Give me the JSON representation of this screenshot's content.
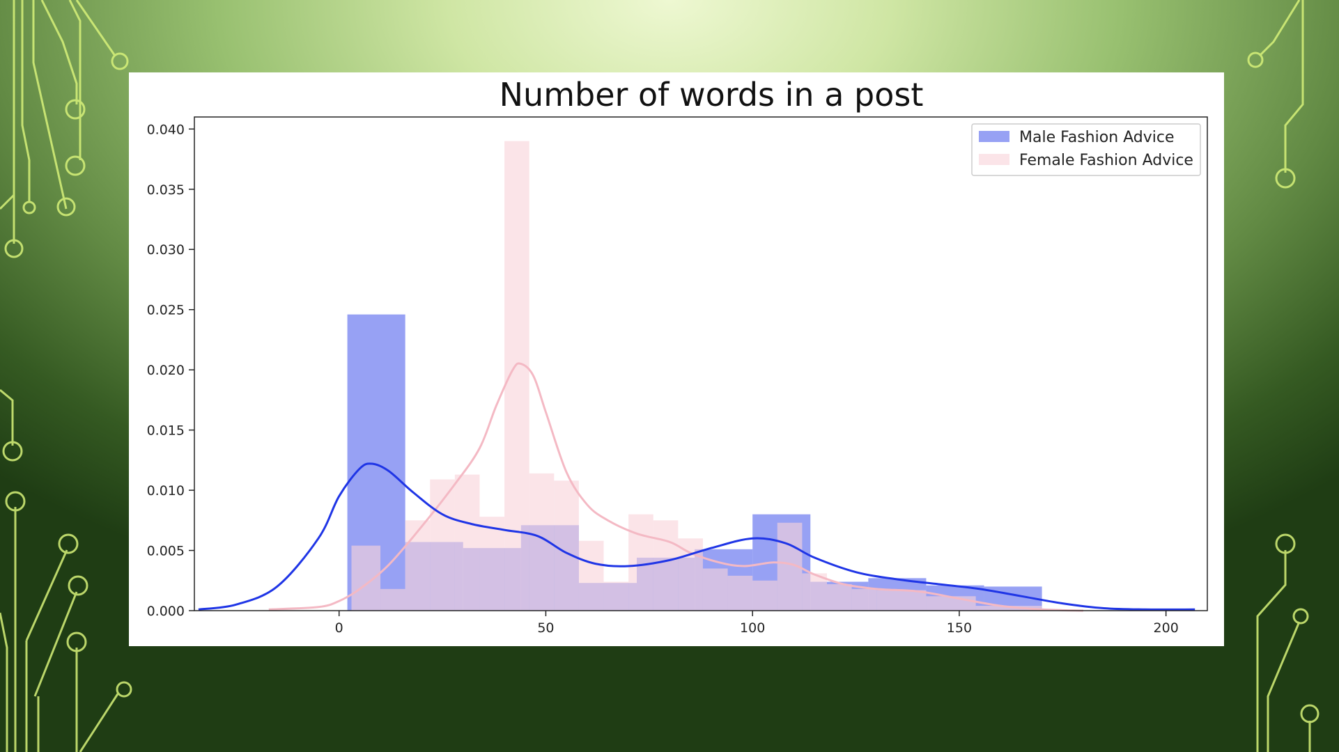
{
  "colors": {
    "male_bar": "#6f7df0",
    "female_bar": "#f9d3da",
    "male_kde": "#1f35e6",
    "female_kde": "#f4b9c4",
    "circuit": "#d8f27a"
  },
  "chart_data": {
    "type": "bar",
    "title": "Number of words in a post",
    "xlim": [
      -35,
      210
    ],
    "ylim": [
      0,
      0.041
    ],
    "xticks": [
      0,
      50,
      100,
      150,
      200
    ],
    "yticks": [
      0.0,
      0.005,
      0.01,
      0.015,
      0.02,
      0.025,
      0.03,
      0.035,
      0.04
    ],
    "grid": false,
    "legend_position": "top-right",
    "series": [
      {
        "name": "Male Fashion Advice",
        "kind": "histogram",
        "bins": [
          {
            "x0": 2,
            "x1": 16,
            "y": 0.0246
          },
          {
            "x0": 16,
            "x1": 30,
            "y": 0.0057
          },
          {
            "x0": 30,
            "x1": 44,
            "y": 0.0052
          },
          {
            "x0": 44,
            "x1": 58,
            "y": 0.0071
          },
          {
            "x0": 58,
            "x1": 72,
            "y": 0.0023
          },
          {
            "x0": 72,
            "x1": 86,
            "y": 0.0044
          },
          {
            "x0": 86,
            "x1": 100,
            "y": 0.0051
          },
          {
            "x0": 100,
            "x1": 114,
            "y": 0.008
          },
          {
            "x0": 114,
            "x1": 128,
            "y": 0.0024
          },
          {
            "x0": 128,
            "x1": 142,
            "y": 0.0027
          },
          {
            "x0": 142,
            "x1": 156,
            "y": 0.0021
          },
          {
            "x0": 156,
            "x1": 170,
            "y": 0.002
          }
        ],
        "kde": [
          [
            -34,
            0.0001
          ],
          [
            -25,
            0.0005
          ],
          [
            -15,
            0.002
          ],
          [
            -5,
            0.006
          ],
          [
            0,
            0.0095
          ],
          [
            5,
            0.0118
          ],
          [
            8,
            0.0122
          ],
          [
            12,
            0.0116
          ],
          [
            18,
            0.0098
          ],
          [
            25,
            0.008
          ],
          [
            32,
            0.0072
          ],
          [
            40,
            0.0067
          ],
          [
            48,
            0.0062
          ],
          [
            55,
            0.0048
          ],
          [
            62,
            0.0039
          ],
          [
            70,
            0.0037
          ],
          [
            80,
            0.0042
          ],
          [
            90,
            0.0052
          ],
          [
            100,
            0.006
          ],
          [
            108,
            0.0056
          ],
          [
            115,
            0.0044
          ],
          [
            125,
            0.0032
          ],
          [
            135,
            0.0026
          ],
          [
            145,
            0.0022
          ],
          [
            155,
            0.0018
          ],
          [
            165,
            0.0012
          ],
          [
            175,
            0.0006
          ],
          [
            185,
            0.0002
          ],
          [
            195,
            0.0001
          ],
          [
            207,
            0.0001
          ]
        ]
      },
      {
        "name": "Female Fashion Advice",
        "kind": "histogram",
        "bins": [
          {
            "x0": 3,
            "x1": 10,
            "y": 0.0054
          },
          {
            "x0": 10,
            "x1": 16,
            "y": 0.0018
          },
          {
            "x0": 16,
            "x1": 22,
            "y": 0.0075
          },
          {
            "x0": 22,
            "x1": 28,
            "y": 0.0109
          },
          {
            "x0": 28,
            "x1": 34,
            "y": 0.0113
          },
          {
            "x0": 34,
            "x1": 40,
            "y": 0.0078
          },
          {
            "x0": 40,
            "x1": 46,
            "y": 0.039
          },
          {
            "x0": 46,
            "x1": 52,
            "y": 0.0114
          },
          {
            "x0": 52,
            "x1": 58,
            "y": 0.0108
          },
          {
            "x0": 58,
            "x1": 64,
            "y": 0.0058
          },
          {
            "x0": 64,
            "x1": 70,
            "y": 0.0024
          },
          {
            "x0": 70,
            "x1": 76,
            "y": 0.008
          },
          {
            "x0": 76,
            "x1": 82,
            "y": 0.0075
          },
          {
            "x0": 82,
            "x1": 88,
            "y": 0.006
          },
          {
            "x0": 88,
            "x1": 94,
            "y": 0.0035
          },
          {
            "x0": 94,
            "x1": 100,
            "y": 0.0029
          },
          {
            "x0": 100,
            "x1": 106,
            "y": 0.0025
          },
          {
            "x0": 106,
            "x1": 112,
            "y": 0.0073
          },
          {
            "x0": 112,
            "x1": 118,
            "y": 0.0031
          },
          {
            "x0": 118,
            "x1": 124,
            "y": 0.0022
          },
          {
            "x0": 124,
            "x1": 130,
            "y": 0.0018
          },
          {
            "x0": 130,
            "x1": 142,
            "y": 0.0017
          },
          {
            "x0": 142,
            "x1": 154,
            "y": 0.0012
          },
          {
            "x0": 154,
            "x1": 170,
            "y": 0.0004
          }
        ],
        "kde": [
          [
            -17,
            0.0001
          ],
          [
            -5,
            0.0003
          ],
          [
            0,
            0.0008
          ],
          [
            5,
            0.0018
          ],
          [
            12,
            0.0038
          ],
          [
            20,
            0.007
          ],
          [
            28,
            0.0105
          ],
          [
            34,
            0.0135
          ],
          [
            38,
            0.017
          ],
          [
            42,
            0.02
          ],
          [
            44,
            0.0205
          ],
          [
            47,
            0.0195
          ],
          [
            50,
            0.0165
          ],
          [
            55,
            0.0115
          ],
          [
            60,
            0.0088
          ],
          [
            65,
            0.0075
          ],
          [
            72,
            0.0064
          ],
          [
            80,
            0.0057
          ],
          [
            85,
            0.0048
          ],
          [
            92,
            0.004
          ],
          [
            98,
            0.0037
          ],
          [
            105,
            0.004
          ],
          [
            110,
            0.0038
          ],
          [
            115,
            0.003
          ],
          [
            122,
            0.0022
          ],
          [
            130,
            0.0018
          ],
          [
            140,
            0.0016
          ],
          [
            150,
            0.001
          ],
          [
            160,
            0.0004
          ],
          [
            170,
            0.0001
          ],
          [
            180,
            0.0
          ]
        ]
      }
    ]
  }
}
